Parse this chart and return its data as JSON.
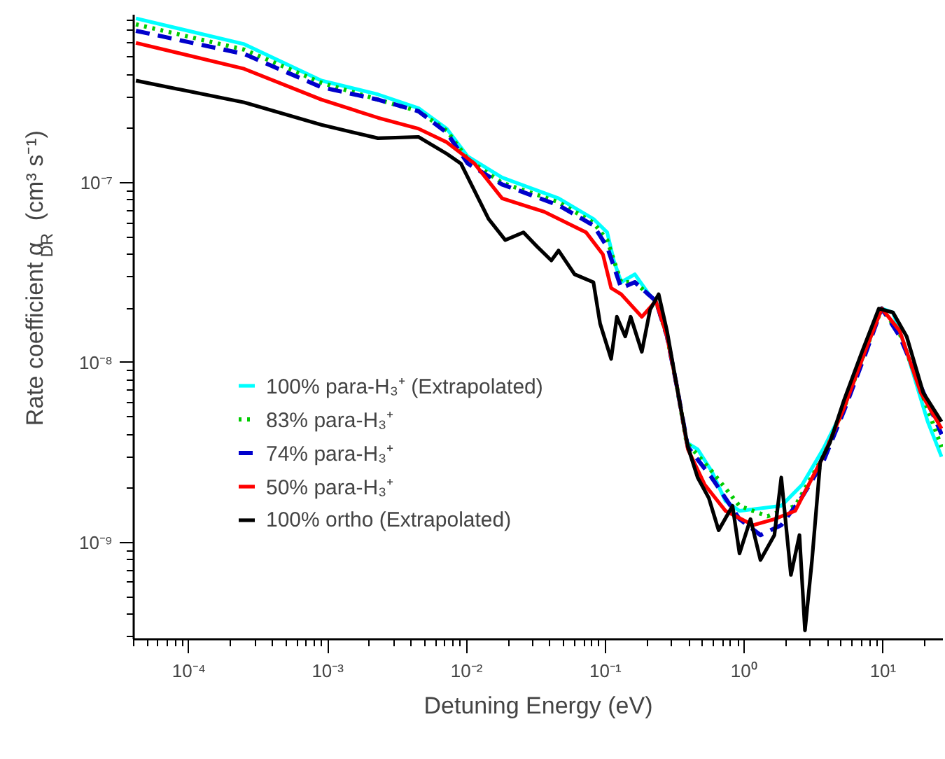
{
  "chart_data": {
    "type": "line",
    "xlabel": "Detuning Energy (eV)",
    "ylabel": "Rate coefficient α$_{DR}$ (cm³ s⁻¹)",
    "log": "xy",
    "xlim": [
      4e-05,
      27
    ],
    "ylim": [
      2.9e-10,
      8.6e-07
    ],
    "xticks": [
      {
        "value": 0.0001,
        "label": "10⁻⁴"
      },
      {
        "value": 0.001,
        "label": "10⁻³"
      },
      {
        "value": 0.01,
        "label": "10⁻²"
      },
      {
        "value": 0.1,
        "label": "10⁻¹"
      },
      {
        "value": 1,
        "label": "10⁰"
      },
      {
        "value": 10,
        "label": "10¹"
      }
    ],
    "yticks": [
      {
        "value": 1e-09,
        "label": "10⁻⁹"
      },
      {
        "value": 1e-08,
        "label": "10⁻⁸"
      },
      {
        "value": 1e-07,
        "label": "10⁻⁷"
      }
    ],
    "grid": false,
    "legend": "bottom left",
    "series": [
      {
        "name": "100% para-H₃⁺ (Extrapolated)",
        "color": "#00ffff",
        "line_style": "solid",
        "x": [
          4.15e-05,
          0.00025,
          0.0009,
          0.0023,
          0.0045,
          0.0072,
          0.0102,
          0.018,
          0.046,
          0.082,
          0.103,
          0.115,
          0.13,
          0.163,
          0.206,
          0.231,
          0.278,
          0.327,
          0.384,
          0.462,
          0.582,
          0.733,
          0.925,
          1.31,
          1.85,
          2.62,
          3.7,
          5.24,
          7.41,
          9.8,
          11.8,
          14.8,
          21.0,
          26.4
        ],
        "values": [
          8.2e-07,
          5.9e-07,
          3.7e-07,
          3.1e-07,
          2.6e-07,
          2e-07,
          1.4e-07,
          1.07e-07,
          8.2e-08,
          6.3e-08,
          5.3e-08,
          3.7e-08,
          2.8e-08,
          3.1e-08,
          2.4e-08,
          2.2e-08,
          1.4e-08,
          7.4e-09,
          3.6e-09,
          3.3e-09,
          2.5e-09,
          1.7e-09,
          1.5e-09,
          1.55e-09,
          1.6e-09,
          2.1e-09,
          3.3e-09,
          5.6e-09,
          1.15e-08,
          2e-08,
          1.9e-08,
          1.15e-08,
          4.7e-09,
          3e-09
        ]
      },
      {
        "name": "83% para-H₃⁺",
        "color": "#00cc00",
        "line_style": "dotted",
        "x": [
          4.15e-05,
          0.00025,
          0.0009,
          0.0023,
          0.0045,
          0.0072,
          0.0102,
          0.018,
          0.046,
          0.082,
          0.103,
          0.13,
          0.163,
          0.231,
          0.278,
          0.327,
          0.384,
          0.582,
          0.925,
          1.47,
          2.33,
          3.7,
          5.24,
          7.41,
          9.8,
          13.2,
          18.7,
          26.4
        ],
        "values": [
          7.6e-07,
          5.5e-07,
          3.6e-07,
          2.9e-07,
          2.5e-07,
          1.95e-07,
          1.35e-07,
          1e-07,
          7.8e-08,
          6e-08,
          4.8e-08,
          2.8e-08,
          2.8e-08,
          2.2e-08,
          1.4e-08,
          7.4e-09,
          3.6e-09,
          2.5e-09,
          1.6e-09,
          1.4e-09,
          1.6e-09,
          3e-09,
          5.6e-09,
          1.15e-08,
          2e-08,
          1.45e-08,
          7e-09,
          3.4e-09
        ]
      },
      {
        "name": "74% para-H₃⁺",
        "color": "#0000cc",
        "line_style": "dashed",
        "x": [
          4.15e-05,
          0.00025,
          0.0009,
          0.0023,
          0.0045,
          0.0072,
          0.0102,
          0.018,
          0.046,
          0.082,
          0.103,
          0.13,
          0.163,
          0.231,
          0.278,
          0.327,
          0.393,
          0.582,
          0.925,
          1.31,
          1.85,
          2.62,
          3.7,
          5.24,
          7.41,
          9.8,
          13.2,
          18.7,
          26.4
        ],
        "values": [
          7e-07,
          5.2e-07,
          3.4e-07,
          2.9e-07,
          2.5e-07,
          1.9e-07,
          1.28e-07,
          9.8e-08,
          7.5e-08,
          5.8e-08,
          4.4e-08,
          2.6e-08,
          2.8e-08,
          2.2e-08,
          1.4e-08,
          7.4e-09,
          3.4e-09,
          2.3e-09,
          1.35e-09,
          1.1e-09,
          1.25e-09,
          1.8e-09,
          2.8e-09,
          5.4e-09,
          1.1e-08,
          2e-08,
          1.4e-08,
          7.4e-09,
          4e-09
        ]
      },
      {
        "name": "50% para-H₃⁺",
        "color": "#ff0000",
        "line_style": "solid",
        "x": [
          4.15e-05,
          0.00025,
          0.0009,
          0.0023,
          0.0045,
          0.0072,
          0.0114,
          0.018,
          0.0363,
          0.0726,
          0.096,
          0.11,
          0.13,
          0.183,
          0.231,
          0.278,
          0.327,
          0.393,
          0.519,
          0.733,
          1.16,
          1.65,
          2.33,
          3.7,
          5.24,
          7.41,
          9.8,
          13.2,
          18.7,
          26.4
        ],
        "values": [
          6e-07,
          4.3e-07,
          2.9e-07,
          2.3e-07,
          2e-07,
          1.68e-07,
          1.28e-07,
          8.2e-08,
          6.9e-08,
          5.3e-08,
          4e-08,
          2.6e-08,
          2.4e-08,
          1.8e-08,
          2.2e-08,
          1.4e-08,
          7.4e-09,
          3.3e-09,
          2.1e-09,
          1.5e-09,
          1.25e-09,
          1.35e-09,
          1.5e-09,
          3e-09,
          5.6e-09,
          1.15e-08,
          2e-08,
          1.5e-08,
          6.8e-09,
          4.3e-09
        ]
      },
      {
        "name": "100% ortho (Extrapolated)",
        "color": "#000000",
        "line_style": "solid",
        "x": [
          4.15e-05,
          0.00025,
          0.0009,
          0.0023,
          0.0045,
          0.0072,
          0.0091,
          0.0144,
          0.019,
          0.0257,
          0.0324,
          0.0408,
          0.046,
          0.06,
          0.082,
          0.0916,
          0.11,
          0.121,
          0.139,
          0.152,
          0.183,
          0.21,
          0.242,
          0.278,
          0.327,
          0.393,
          0.462,
          0.556,
          0.654,
          0.824,
          0.925,
          1.11,
          1.31,
          1.65,
          1.85,
          2.17,
          2.5,
          2.74,
          3.08,
          3.53,
          4.15,
          5.24,
          7.06,
          9.33,
          11.8,
          14.8,
          19.5,
          26.4
        ],
        "values": [
          3.7e-07,
          2.8e-07,
          2.1e-07,
          1.77e-07,
          1.8e-07,
          1.45e-07,
          1.28e-07,
          6.3e-08,
          4.8e-08,
          5.3e-08,
          4.4e-08,
          3.7e-08,
          4.2e-08,
          3.1e-08,
          2.8e-08,
          1.65e-08,
          1.05e-08,
          1.8e-08,
          1.4e-08,
          1.8e-08,
          1.15e-08,
          1.97e-08,
          2.4e-08,
          1.5e-08,
          7.4e-09,
          3.4e-09,
          2.3e-09,
          1.77e-09,
          1.17e-09,
          1.6e-09,
          8.7e-10,
          1.35e-09,
          8e-10,
          1.1e-09,
          2.3e-09,
          6.6e-10,
          1.1e-09,
          3.25e-10,
          8e-10,
          2.8e-09,
          3.6e-09,
          6.2e-09,
          1.15e-08,
          2e-08,
          1.9e-08,
          1.4e-08,
          6.8e-09,
          4.7e-09
        ]
      }
    ]
  }
}
